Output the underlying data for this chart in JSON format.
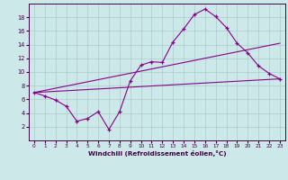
{
  "xlabel": "Windchill (Refroidissement éolien,°C)",
  "background_color": "#cce8e8",
  "grid_color": "#aacccc",
  "line_color": "#880088",
  "xlim": [
    -0.5,
    23.5
  ],
  "ylim": [
    0,
    20
  ],
  "xticks": [
    0,
    1,
    2,
    3,
    4,
    5,
    6,
    7,
    8,
    9,
    10,
    11,
    12,
    13,
    14,
    15,
    16,
    17,
    18,
    19,
    20,
    21,
    22,
    23
  ],
  "yticks": [
    2,
    4,
    6,
    8,
    10,
    12,
    14,
    16,
    18
  ],
  "line1_x": [
    0,
    1,
    2,
    3,
    4,
    5,
    6,
    7,
    8,
    9,
    10,
    11,
    12,
    13,
    14,
    15,
    16,
    17,
    18,
    19,
    20,
    21,
    22,
    23
  ],
  "line1_y": [
    7.0,
    6.5,
    5.9,
    5.0,
    2.8,
    3.2,
    4.2,
    1.6,
    4.2,
    8.7,
    11.0,
    11.5,
    11.4,
    14.4,
    16.3,
    18.4,
    19.2,
    18.1,
    16.5,
    14.2,
    12.8,
    10.9,
    9.8,
    9.0
  ],
  "line2_x": [
    0,
    23
  ],
  "line2_y": [
    7.0,
    14.2
  ],
  "line3_x": [
    0,
    23
  ],
  "line3_y": [
    7.0,
    9.0
  ],
  "xlabel_color": "#440044",
  "tick_color": "#440044",
  "spine_color": "#440044"
}
